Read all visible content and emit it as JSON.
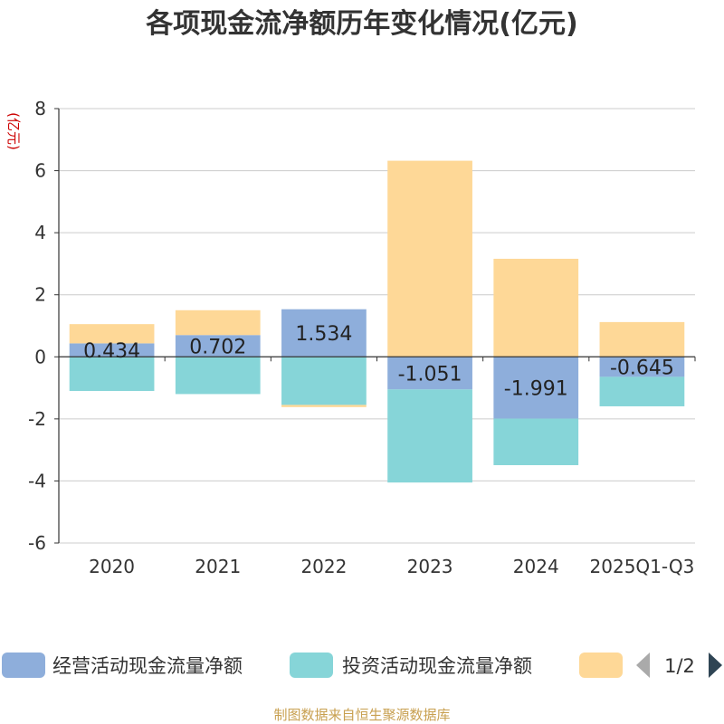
{
  "source_note": "制图数据来自恒生聚源数据库",
  "legend": {
    "page_indicator": "1/2"
  },
  "colors": {
    "operating": "#8eaedb",
    "investing": "#86d5d8",
    "financing": "#fed897",
    "axis": "#333333",
    "grid": "#cccccc",
    "ylabel": "#cc0000",
    "pager_active": "#2f4554",
    "pager_inactive": "#aaaaaa"
  },
  "chart_data": {
    "type": "bar",
    "stacked": true,
    "title": "各项现金流净额历年变化情况(亿元)",
    "xlabel": "",
    "ylabel": "(亿元)",
    "ylim": [
      -6,
      8
    ],
    "yticks": [
      -6,
      -4,
      -2,
      0,
      2,
      4,
      6,
      8
    ],
    "grid": true,
    "legend_position": "bottom",
    "categories": [
      "2020",
      "2021",
      "2022",
      "2023",
      "2024",
      "2025Q1-Q3"
    ],
    "series": [
      {
        "name": "经营活动现金流量净额",
        "color_key": "operating",
        "values": [
          0.434,
          0.702,
          1.534,
          -1.051,
          -1.991,
          -0.645
        ],
        "labels": [
          "0.434",
          "0.702",
          "1.534",
          "-1.051",
          "-1.991",
          "-0.645"
        ]
      },
      {
        "name": "投资活动现金流量净额",
        "color_key": "investing",
        "values": [
          -1.1,
          -1.2,
          -1.55,
          -3.0,
          -1.5,
          -0.95
        ]
      },
      {
        "name": "",
        "color_key": "financing",
        "values": [
          0.62,
          0.8,
          -0.07,
          6.32,
          3.16,
          1.12
        ]
      }
    ]
  }
}
